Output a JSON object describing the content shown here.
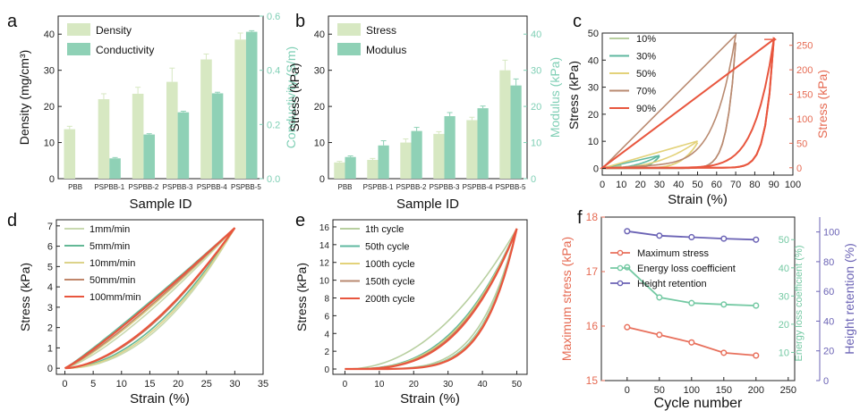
{
  "colors": {
    "density": "#d7e8c2",
    "conductivity": "#8fd1b6",
    "stress_bar": "#d7e8c2",
    "modulus_bar": "#8fd1b6",
    "axis_teal": "#7fcfb5",
    "axis_red": "#e66a52",
    "axis_purple": "#6b63b5",
    "line_10": "#b8cfa0",
    "line_30": "#5fb8a0",
    "line_50": "#e3d27a",
    "line_70": "#b98a70",
    "line_90": "#e8563e",
    "d_1": "#c9d9b0",
    "d_5": "#63b896",
    "d_10": "#dcd38a",
    "d_50": "#c0866a",
    "d_100": "#e8563e",
    "f_max": "#e8705c",
    "f_energy": "#74c9a3",
    "f_height": "#6b63b5"
  },
  "chart_data": [
    {
      "id": "a",
      "panel_label": "a",
      "type": "bar",
      "xlabel": "Sample ID",
      "ylabel": "Density (mg/cm³)",
      "y2label": "Conductivity (S/m)",
      "categories": [
        "PBB",
        "PSPBB-1",
        "PSPBB-2",
        "PSPBB-3",
        "PSPBB-4",
        "PSPBB-5"
      ],
      "ylim": [
        0,
        45
      ],
      "yticks": [
        "0",
        "10",
        "20",
        "30",
        "40"
      ],
      "y2lim": [
        0,
        0.6
      ],
      "y2ticks": [
        "0.0",
        "0.2",
        "0.4",
        "0.6"
      ],
      "series": [
        {
          "name": "Density",
          "axis": "left",
          "values": [
            13.7,
            22,
            23.5,
            26.8,
            33,
            38.5
          ],
          "errors": [
            0.8,
            1.5,
            1.8,
            3.8,
            1.5,
            1.8
          ]
        },
        {
          "name": "Conductivity",
          "axis": "right",
          "values": [
            null,
            0.075,
            0.163,
            0.245,
            0.315,
            0.542
          ],
          "errors": [
            0,
            0.003,
            0.003,
            0.004,
            0.004,
            0.004
          ]
        }
      ]
    },
    {
      "id": "b",
      "panel_label": "b",
      "type": "bar",
      "xlabel": "Sample ID",
      "ylabel": "Stress (kPa)",
      "y2label": "Modulus (kPa)",
      "categories": [
        "PBB",
        "PSPBB-1",
        "PSPBB-2",
        "PSPBB-3",
        "PSPBB-4",
        "PSPBB-5"
      ],
      "ylim": [
        0,
        45
      ],
      "yticks": [
        "0",
        "10",
        "20",
        "30",
        "40"
      ],
      "y2lim": [
        0,
        45
      ],
      "y2ticks": [
        "0",
        "10",
        "20",
        "30",
        "40"
      ],
      "series": [
        {
          "name": "Stress",
          "axis": "left",
          "values": [
            4.5,
            5.2,
            10,
            12.4,
            16.2,
            30
          ],
          "errors": [
            0.3,
            0.4,
            1,
            0.6,
            0.8,
            2.8
          ]
        },
        {
          "name": "Modulus",
          "axis": "right",
          "values": [
            6,
            9.2,
            13.2,
            17.3,
            19.5,
            25.8
          ],
          "errors": [
            0.3,
            1.3,
            1,
            1,
            0.6,
            1.8
          ]
        }
      ]
    },
    {
      "id": "c",
      "panel_label": "c",
      "type": "line",
      "xlabel": "Strain (%)",
      "ylabel": "Stress (kPa)",
      "y2label": "Stress (kPa)",
      "xlim": [
        0,
        100
      ],
      "xticks": [
        "0",
        "10",
        "20",
        "30",
        "40",
        "50",
        "60",
        "70",
        "80",
        "90",
        "100"
      ],
      "ylim": [
        -2.5,
        50
      ],
      "yticks": [
        "0",
        "10",
        "20",
        "30",
        "40",
        "50"
      ],
      "y2lim": [
        -15,
        275
      ],
      "y2ticks": [
        "0",
        "50",
        "100",
        "150",
        "200",
        "250"
      ],
      "series": [
        {
          "name": "10%",
          "axis": "left",
          "max_strain": 10,
          "peak": 1.0
        },
        {
          "name": "30%",
          "axis": "left",
          "max_strain": 30,
          "peak": 4.5
        },
        {
          "name": "50%",
          "axis": "left",
          "max_strain": 50,
          "peak": 9.5
        },
        {
          "name": "70%",
          "axis": "left",
          "max_strain": 70,
          "peak": 46.5
        },
        {
          "name": "90%",
          "axis": "right",
          "max_strain": 90,
          "peak": 262
        }
      ]
    },
    {
      "id": "d",
      "panel_label": "d",
      "type": "line",
      "xlabel": "Strain (%)",
      "ylabel": "Stress (kPa)",
      "xlim": [
        -1.5,
        35
      ],
      "xticks": [
        "0",
        "5",
        "10",
        "15",
        "20",
        "25",
        "30",
        "35"
      ],
      "ylim": [
        -0.3,
        7.3
      ],
      "yticks": [
        "0",
        "1",
        "2",
        "3",
        "4",
        "5",
        "6",
        "7"
      ],
      "max_strain": 30,
      "peak": 6.9,
      "series": [
        {
          "name": "1mm/min",
          "load_exp": 1.3,
          "unload_exp": 2.1
        },
        {
          "name": "5mm/min",
          "load_exp": 1.08,
          "unload_exp": 1.9
        },
        {
          "name": "10mm/min",
          "load_exp": 1.22,
          "unload_exp": 2.0
        },
        {
          "name": "50mm/min",
          "load_exp": 1.18,
          "unload_exp": 1.75
        },
        {
          "name": "100mm/min",
          "load_exp": 1.12,
          "unload_exp": 1.7
        }
      ]
    },
    {
      "id": "e",
      "panel_label": "e",
      "type": "line",
      "xlabel": "Strain (%)",
      "ylabel": "Stress (kPa)",
      "xlim": [
        -3.5,
        53
      ],
      "xticks": [
        "0",
        "10",
        "20",
        "30",
        "40",
        "50"
      ],
      "ylim": [
        -0.6,
        16.8
      ],
      "yticks": [
        "0",
        "2",
        "4",
        "6",
        "8",
        "10",
        "12",
        "14",
        "16"
      ],
      "max_strain": 50,
      "peak": 15.8,
      "series": [
        {
          "name": "1th cycle",
          "load_exp": 2.1,
          "unload_exp": 4.8
        },
        {
          "name": "50th cycle",
          "load_exp": 2.8,
          "unload_exp": 5.2
        },
        {
          "name": "100th cycle",
          "load_exp": 2.9,
          "unload_exp": 5.3
        },
        {
          "name": "150th cycle",
          "load_exp": 3.0,
          "unload_exp": 5.4
        },
        {
          "name": "200th cycle",
          "load_exp": 3.1,
          "unload_exp": 5.5
        }
      ]
    },
    {
      "id": "f",
      "panel_label": "f",
      "type": "line",
      "xlabel": "Cycle number",
      "ylabel": "Maximum stress (kPa)",
      "y2label": "Energy loss coefficient (%)",
      "y3label": "Height retention (%)",
      "xlim": [
        -40,
        260
      ],
      "xticks": [
        "0",
        "50",
        "100",
        "150",
        "200",
        "250"
      ],
      "ylim": [
        15,
        18
      ],
      "yticks": [
        "15",
        "16",
        "17",
        "18"
      ],
      "y2lim": [
        0,
        58
      ],
      "y2ticks": [
        "10",
        "20",
        "30",
        "40",
        "50"
      ],
      "y3lim": [
        0,
        110
      ],
      "y3ticks": [
        "0",
        "20",
        "40",
        "60",
        "80",
        "100"
      ],
      "x": [
        0,
        50,
        100,
        150,
        200
      ],
      "series": [
        {
          "name": "Maximum stress",
          "axis": "left",
          "values": [
            15.98,
            15.84,
            15.7,
            15.51,
            15.46
          ]
        },
        {
          "name": "Energy loss coefficient",
          "axis": "right",
          "values": [
            40.2,
            29.5,
            27.5,
            27,
            26.6
          ]
        },
        {
          "name": "Height retention",
          "axis": "right2",
          "values": [
            100.5,
            97.5,
            96.5,
            95.5,
            94.8
          ]
        }
      ]
    }
  ]
}
